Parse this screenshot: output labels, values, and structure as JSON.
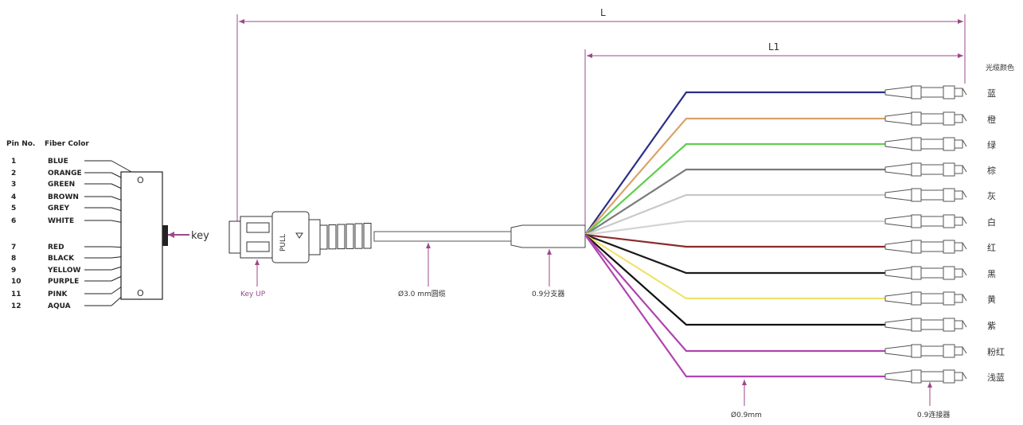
{
  "dimensions": {
    "L": "L",
    "L1": "L1"
  },
  "table": {
    "pin_header": "Pin No.",
    "color_header": "Fiber Color",
    "rows": [
      {
        "pin": "1",
        "color": "BLUE"
      },
      {
        "pin": "2",
        "color": "ORANGE"
      },
      {
        "pin": "3",
        "color": "GREEN"
      },
      {
        "pin": "4",
        "color": "BROWN"
      },
      {
        "pin": "5",
        "color": "GREY"
      },
      {
        "pin": "6",
        "color": "WHITE"
      },
      {
        "pin": "7",
        "color": "RED"
      },
      {
        "pin": "8",
        "color": "BLACK"
      },
      {
        "pin": "9",
        "color": "YELLOW"
      },
      {
        "pin": "10",
        "color": "PURPLE"
      },
      {
        "pin": "11",
        "color": "PINK"
      },
      {
        "pin": "12",
        "color": "AQUA"
      }
    ]
  },
  "connector_face": {
    "marks_top": "O",
    "marks_bottom": "O",
    "key_label": "key"
  },
  "labels": {
    "key_up": "Key UP",
    "cable": "Ø3.0 mm圆缆",
    "splitter": "0.9分支器",
    "fiber_diameter": "Ø0.9mm",
    "end_connector": "0.9连接器",
    "pull_text": "PULL",
    "color_column_header": "光缆颜色"
  },
  "fanout": {
    "fibers": [
      {
        "name_cn": "蓝",
        "color": "#2b2f86"
      },
      {
        "name_cn": "橙",
        "color": "#d9a46a"
      },
      {
        "name_cn": "绿",
        "color": "#5fcf4d"
      },
      {
        "name_cn": "棕",
        "color": "#7a7a7a"
      },
      {
        "name_cn": "灰",
        "color": "#c8c8c8"
      },
      {
        "name_cn": "白",
        "color": "#d4d4d4"
      },
      {
        "name_cn": "红",
        "color": "#8b2a2a"
      },
      {
        "name_cn": "黑",
        "color": "#1a1a1a"
      },
      {
        "name_cn": "黄",
        "color": "#f0e26a"
      },
      {
        "name_cn": "紫",
        "color": "#111111"
      },
      {
        "name_cn": "粉红",
        "color": "#b044b0"
      },
      {
        "name_cn": "浅蓝",
        "color": "#b044b0"
      }
    ]
  },
  "accent": "#9b4a8a"
}
